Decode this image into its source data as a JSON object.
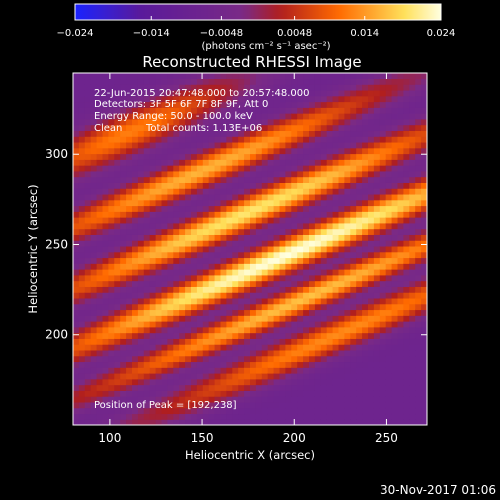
{
  "chart_data": {
    "type": "heatmap",
    "title": "Reconstructed RHESSI Image",
    "xlabel": "Heliocentric X (arcsec)",
    "ylabel": "Heliocentric Y (arcsec)",
    "xlim": [
      80,
      272
    ],
    "ylim": [
      150,
      345
    ],
    "x_ticks": [
      100,
      150,
      200,
      250
    ],
    "y_ticks": [
      200,
      250,
      300
    ],
    "colorbar": {
      "min": -0.024,
      "max": 0.024,
      "tick_values": [
        -0.024,
        -0.014,
        -0.0048,
        0.0048,
        0.014,
        0.024
      ],
      "tick_labels": [
        "−0.024",
        "−0.014",
        "−0.0048",
        "0.0048",
        "0.014",
        "0.024"
      ],
      "units_label": "(photons cm⁻² s⁻¹ asec⁻²)",
      "colors": [
        "#1a22ff",
        "#5a1a9a",
        "#7a2a86",
        "#b01e1e",
        "#ff6a00",
        "#ffe05a",
        "#ffffe0"
      ]
    },
    "annotations": {
      "time_range": "22-Jun-2015 20:47:48.000 to 20:57:48.000",
      "detectors": "Detectors: 3F 5F 6F 7F 8F 9F, Att 0",
      "energy_range": "Energy Range: 50.0 - 100.0 keV",
      "clean_label": "Clean",
      "total_counts": "Total counts: 1.13E+06",
      "peak_position": "Position of Peak = [192,238]"
    },
    "peak": {
      "x": 192,
      "y": 238,
      "value": 0.024
    },
    "ridges": [
      {
        "cx": 195,
        "cy": 244,
        "amp": 0.024,
        "sx": 98,
        "sy": 7
      },
      {
        "cx": 175,
        "cy": 268,
        "amp": 0.02,
        "sx": 86,
        "sy": 7
      },
      {
        "cx": 150,
        "cy": 291,
        "amp": 0.016,
        "sx": 76,
        "sy": 7
      },
      {
        "cx": 205,
        "cy": 220,
        "amp": 0.017,
        "sx": 92,
        "sy": 6
      },
      {
        "cx": 225,
        "cy": 201,
        "amp": 0.013,
        "sx": 80,
        "sy": 7
      },
      {
        "cx": 110,
        "cy": 312,
        "amp": 0.012,
        "sx": 44,
        "sy": 9
      }
    ],
    "slope_deg": 24,
    "background_level": -0.007,
    "footer_date": "30-Nov-2017 01:06"
  }
}
